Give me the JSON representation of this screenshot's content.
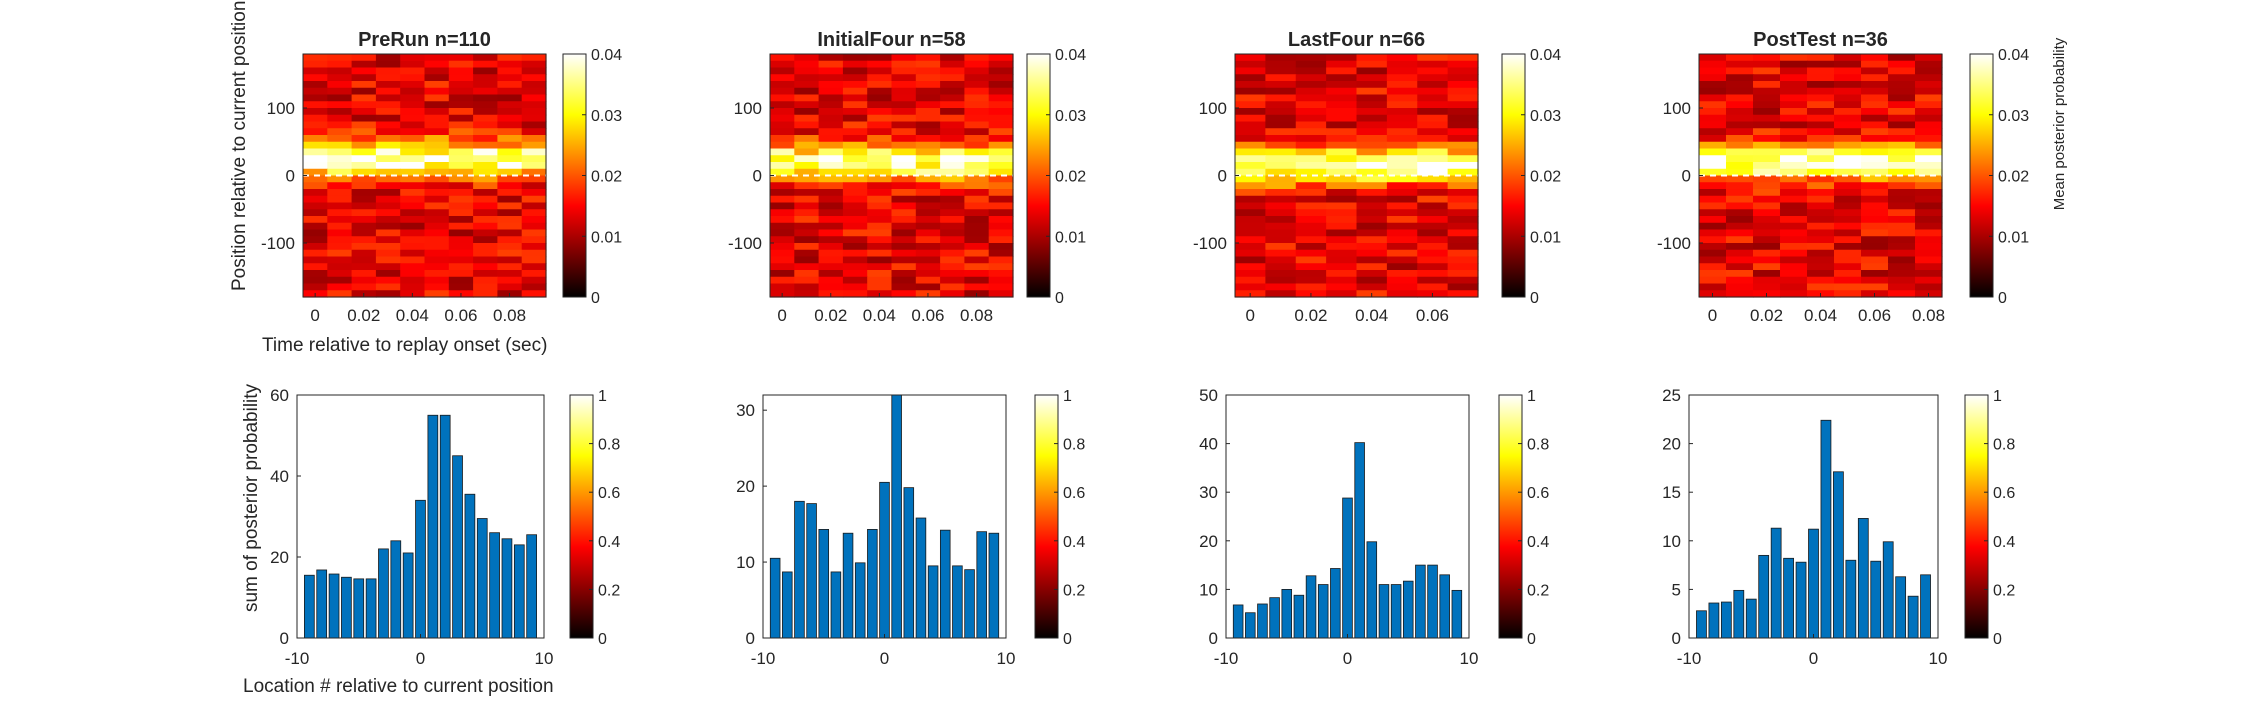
{
  "colorbar_top": {
    "ticks": [
      "0",
      "0.01",
      "0.02",
      "0.03",
      "0.04"
    ],
    "label": "Mean posterior probability"
  },
  "colorbar_bottom": {
    "ticks": [
      "0",
      "0.2",
      "0.4",
      "0.6",
      "0.8",
      "1"
    ]
  },
  "top_row_labels": {
    "ylabel": "Position relative to current position (deg)",
    "xlabel": "Time relative to replay onset (sec)"
  },
  "bottom_row_labels": {
    "ylabel": "sum of posterior probability",
    "xlabel": "Location # relative to current position"
  },
  "chart_data": [
    {
      "type": "heatmap",
      "title": "PreRun n=110",
      "xlim": [
        -0.005,
        0.095
      ],
      "ylim": [
        -180,
        180
      ],
      "xticks": [
        "0",
        "0.02",
        "0.04",
        "0.06",
        "0.08"
      ],
      "yticks": [
        "100",
        "0",
        "-100"
      ],
      "clim": [
        0,
        0.04
      ],
      "colormap": "hot",
      "reference_line": {
        "y": 0,
        "style": "dashed",
        "color": "#ffffff"
      },
      "peak_offset_deg": 25
    },
    {
      "type": "heatmap",
      "title": "InitialFour n=58",
      "xlim": [
        -0.005,
        0.095
      ],
      "ylim": [
        -180,
        180
      ],
      "xticks": [
        "0",
        "0.02",
        "0.04",
        "0.06",
        "0.08"
      ],
      "yticks": [
        "100",
        "0",
        "-100"
      ],
      "clim": [
        0,
        0.04
      ],
      "colormap": "hot",
      "reference_line": {
        "y": 0,
        "style": "dashed",
        "color": "#ffffff"
      },
      "peak_offset_deg": 20
    },
    {
      "type": "heatmap",
      "title": "LastFour n=66",
      "xlim": [
        -0.005,
        0.075
      ],
      "ylim": [
        -180,
        180
      ],
      "xticks": [
        "0",
        "0.02",
        "0.04",
        "0.06"
      ],
      "yticks": [
        "100",
        "0",
        "-100"
      ],
      "clim": [
        0,
        0.04
      ],
      "colormap": "hot",
      "reference_line": {
        "y": 0,
        "style": "dashed",
        "color": "#ffffff"
      },
      "peak_offset_deg": 15
    },
    {
      "type": "heatmap",
      "title": "PostTest n=36",
      "xlim": [
        -0.005,
        0.085
      ],
      "ylim": [
        -180,
        180
      ],
      "xticks": [
        "0",
        "0.02",
        "0.04",
        "0.06",
        "0.08"
      ],
      "yticks": [
        "100",
        "0",
        "-100"
      ],
      "clim": [
        0,
        0.04
      ],
      "colormap": "hot",
      "reference_line": {
        "y": 0,
        "style": "dashed",
        "color": "#ffffff"
      },
      "peak_offset_deg": 20
    },
    {
      "type": "bar",
      "x": [
        -9,
        -8,
        -7,
        -6,
        -5,
        -4,
        -3,
        -2,
        -1,
        0,
        1,
        2,
        3,
        4,
        5,
        6,
        7,
        8,
        9
      ],
      "values": [
        15.5,
        16.8,
        15.8,
        15,
        14.6,
        14.6,
        22,
        24,
        21,
        34,
        55,
        55,
        45,
        35.5,
        29.5,
        26,
        24.5,
        23,
        25.5
      ],
      "xlim": [
        -10,
        10
      ],
      "ylim": [
        0,
        60
      ],
      "yticks": [
        0,
        20,
        40,
        60
      ],
      "xticks": [
        -10,
        0,
        10
      ],
      "color": "#0072bd"
    },
    {
      "type": "bar",
      "x": [
        -9,
        -8,
        -7,
        -6,
        -5,
        -4,
        -3,
        -2,
        -1,
        0,
        1,
        2,
        3,
        4,
        5,
        6,
        7,
        8,
        9
      ],
      "values": [
        10.5,
        8.7,
        18,
        17.7,
        14.3,
        8.7,
        13.8,
        9.9,
        14.3,
        20.5,
        32,
        19.8,
        15.8,
        9.5,
        14.2,
        9.5,
        9,
        14,
        13.8
      ],
      "xlim": [
        -10,
        10
      ],
      "ylim": [
        0,
        32
      ],
      "yticks": [
        0,
        10,
        20,
        30
      ],
      "xticks": [
        -10,
        0,
        10
      ],
      "color": "#0072bd"
    },
    {
      "type": "bar",
      "x": [
        -9,
        -8,
        -7,
        -6,
        -5,
        -4,
        -3,
        -2,
        -1,
        0,
        1,
        2,
        3,
        4,
        5,
        6,
        7,
        8,
        9
      ],
      "values": [
        6.8,
        5.2,
        7,
        8.3,
        10,
        8.8,
        12.8,
        11,
        14.3,
        28.8,
        40.2,
        19.8,
        11,
        11,
        11.7,
        15,
        15,
        13,
        9.8
      ],
      "xlim": [
        -10,
        10
      ],
      "ylim": [
        0,
        50
      ],
      "yticks": [
        0,
        10,
        20,
        30,
        40,
        50
      ],
      "xticks": [
        -10,
        0,
        10
      ],
      "color": "#0072bd"
    },
    {
      "type": "bar",
      "x": [
        -9,
        -8,
        -7,
        -6,
        -5,
        -4,
        -3,
        -2,
        -1,
        0,
        1,
        2,
        3,
        4,
        5,
        6,
        7,
        8,
        9
      ],
      "values": [
        2.8,
        3.6,
        3.7,
        4.9,
        4,
        8.5,
        11.3,
        8.2,
        7.8,
        11.2,
        22.4,
        17.1,
        8,
        12.3,
        7.9,
        9.9,
        6.3,
        4.3,
        6.5
      ],
      "xlim": [
        -10,
        10
      ],
      "ylim": [
        0,
        25
      ],
      "yticks": [
        0,
        5,
        10,
        15,
        20,
        25
      ],
      "xticks": [
        -10,
        0,
        10
      ],
      "color": "#0072bd"
    }
  ]
}
